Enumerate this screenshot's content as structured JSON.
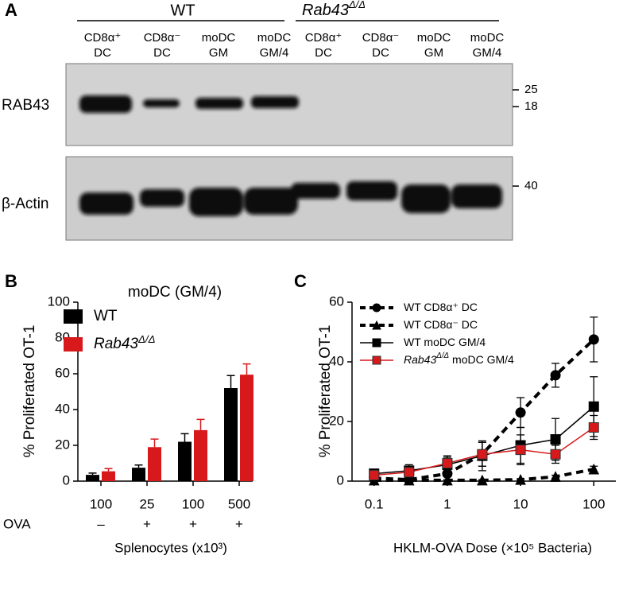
{
  "blot": {
    "panel_label": "A",
    "groups": [
      {
        "label": "WT"
      },
      {
        "label": "Rab43",
        "label_sup": "Δ/Δ"
      }
    ],
    "lanes": [
      [
        "CD8α⁺",
        "DC"
      ],
      [
        "CD8α⁻",
        "DC"
      ],
      [
        "moDC",
        "GM"
      ],
      [
        "moDC",
        "GM/4"
      ],
      [
        "CD8α⁺",
        "DC"
      ],
      [
        "CD8α⁻",
        "DC"
      ],
      [
        "moDC",
        "GM"
      ],
      [
        "moDC",
        "GM/4"
      ]
    ],
    "rows": [
      {
        "label": "RAB43",
        "markers": [
          25,
          18
        ]
      },
      {
        "label": "β-Actin",
        "markers": [
          40
        ]
      }
    ]
  },
  "chart_data": [
    {
      "type": "bar",
      "panel_label": "B",
      "title": "moDC (GM/4)",
      "categories": [
        "100",
        "25",
        "100",
        "500"
      ],
      "ova_label": "OVA",
      "ova": [
        "–",
        "+",
        "+",
        "+"
      ],
      "xlabel": "Splenocytes (x10³)",
      "ylabel": "% Proliferated OT-1",
      "ylim": [
        0,
        100
      ],
      "yticks": [
        0,
        20,
        40,
        60,
        80,
        100
      ],
      "legend": "upper left",
      "series": [
        {
          "name": "WT",
          "color": "#000000",
          "values": [
            3.5,
            7.5,
            22,
            52
          ],
          "errors": [
            1,
            1.5,
            4.5,
            7
          ]
        },
        {
          "name": "Rab43",
          "name_sup": "Δ/Δ",
          "color": "#d7191c",
          "values": [
            5.5,
            19,
            28.5,
            59.5
          ],
          "errors": [
            1.5,
            4.5,
            6,
            6
          ]
        }
      ]
    },
    {
      "type": "line",
      "panel_label": "C",
      "x": [
        0.1,
        0.3,
        1,
        3,
        10,
        30,
        100
      ],
      "xscale": "log",
      "xlim": [
        0.05,
        200
      ],
      "xticks": [
        0.1,
        1,
        10,
        100
      ],
      "ylim": [
        0,
        60
      ],
      "yticks": [
        0,
        20,
        40,
        60
      ],
      "legend": "upper left",
      "xlabel": "HKLM-OVA Dose (×10⁵ Bacteria)",
      "ylabel": "% Proliferated OT-1",
      "series": [
        {
          "name": "WT CD8α⁺ DC",
          "color": "#000000",
          "marker": "circle",
          "linestyle": "dashed",
          "values": [
            1,
            0.5,
            2.5,
            9,
            23,
            35.5,
            47.5
          ],
          "errors": [
            0.5,
            0.5,
            1,
            4,
            5,
            4,
            7.5
          ]
        },
        {
          "name": "WT CD8α⁻ DC",
          "color": "#000000",
          "marker": "triangle",
          "linestyle": "dashed",
          "values": [
            0.3,
            0.3,
            0.3,
            0.3,
            0.5,
            1.5,
            4
          ],
          "errors": [
            0.2,
            0.2,
            0.2,
            0.2,
            0.3,
            0.5,
            1
          ]
        },
        {
          "name": "WT moDC GM/4",
          "color": "#000000",
          "marker": "square",
          "linestyle": "solid",
          "values": [
            2.5,
            3.5,
            5.5,
            8.5,
            12,
            14,
            25
          ],
          "errors": [
            1,
            2,
            3,
            5,
            6,
            7,
            10
          ]
        },
        {
          "name": "Rab43",
          "name_sup": "Δ/Δ",
          "name_rest": " moDC GM/4",
          "color": "#d7191c",
          "marker": "square",
          "linestyle": "solid",
          "values": [
            2,
            3,
            6,
            9,
            10.5,
            9,
            18
          ],
          "errors": [
            1,
            1.5,
            2,
            4,
            5,
            3,
            4
          ]
        }
      ]
    }
  ]
}
